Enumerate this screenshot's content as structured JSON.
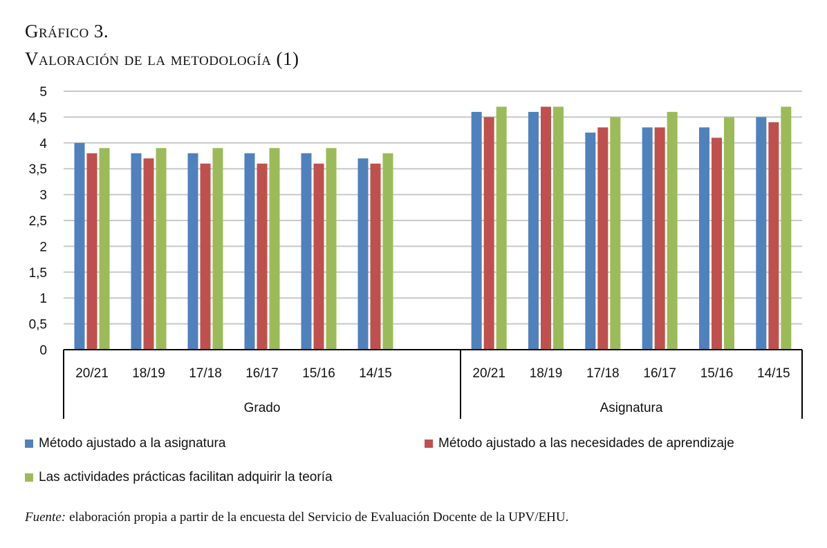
{
  "header": {
    "figure_label": "Gráfico 3.",
    "figure_title": "Valoración de la metodología (1)"
  },
  "source": {
    "label": "Fuente:",
    "text": "elaboración propia a partir de la encuesta del Servicio de Evaluación Docente de la UPV/EHU."
  },
  "chart_data": {
    "type": "bar",
    "title": "Valoración de la metodología (1)",
    "xlabel": "",
    "ylabel": "",
    "ylim": [
      0,
      5
    ],
    "yticks": [
      "0",
      "0,5",
      "1",
      "1,5",
      "2",
      "2,5",
      "3",
      "3,5",
      "4",
      "4,5",
      "5"
    ],
    "grid": true,
    "legend_position": "bottom",
    "groups": [
      {
        "name": "Grado",
        "categories": [
          "20/21",
          "18/19",
          "17/18",
          "16/17",
          "15/16",
          "14/15"
        ],
        "series": [
          {
            "name": "Método ajustado a la asignatura",
            "color": "#4f81bd",
            "values": [
              4.0,
              3.8,
              3.8,
              3.8,
              3.8,
              3.7
            ]
          },
          {
            "name": "Método ajustado a las necesidades de aprendizaje",
            "color": "#c0504d",
            "values": [
              3.8,
              3.7,
              3.6,
              3.6,
              3.6,
              3.6
            ]
          },
          {
            "name": "Las actividades prácticas facilitan adquirir la teoría",
            "color": "#9bbb59",
            "values": [
              3.9,
              3.9,
              3.9,
              3.9,
              3.9,
              3.8
            ]
          }
        ]
      },
      {
        "name": "Asignatura",
        "categories": [
          "20/21",
          "18/19",
          "17/18",
          "16/17",
          "15/16",
          "14/15"
        ],
        "series": [
          {
            "name": "Método ajustado a la asignatura",
            "color": "#4f81bd",
            "values": [
              4.6,
              4.6,
              4.2,
              4.3,
              4.3,
              4.5
            ]
          },
          {
            "name": "Método ajustado a las necesidades de aprendizaje",
            "color": "#c0504d",
            "values": [
              4.5,
              4.7,
              4.3,
              4.3,
              4.1,
              4.4
            ]
          },
          {
            "name": "Las actividades prácticas facilitan adquirir la teoría",
            "color": "#9bbb59",
            "values": [
              4.7,
              4.7,
              4.5,
              4.6,
              4.5,
              4.7
            ]
          }
        ]
      }
    ],
    "legend": [
      {
        "label": "Método ajustado a la asignatura",
        "color": "#4f81bd"
      },
      {
        "label": "Método ajustado a las necesidades de aprendizaje",
        "color": "#c0504d"
      },
      {
        "label": "Las actividades prácticas facilitan adquirir la teoría",
        "color": "#9bbb59"
      }
    ]
  }
}
